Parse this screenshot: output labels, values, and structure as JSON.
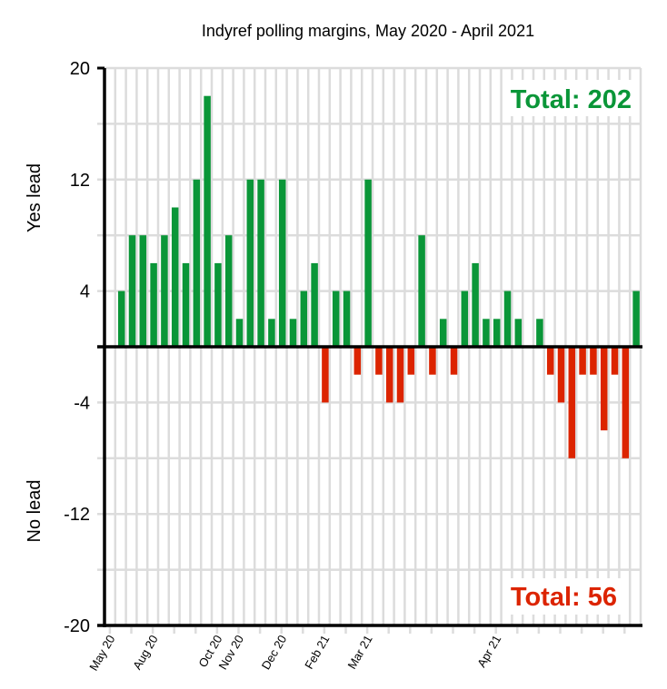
{
  "chart_data": {
    "type": "bar",
    "title": "Indyref polling margins, May 2020 - April 2021",
    "xlabel": "",
    "ylabel_positive": "Yes lead",
    "ylabel_negative": "No lead",
    "ylim": [
      -20,
      20
    ],
    "yticks": [
      20,
      12,
      4,
      -4,
      -12,
      -20
    ],
    "ygrid": [
      20,
      16,
      12,
      8,
      4,
      0,
      -4,
      -8,
      -12,
      -16,
      -20
    ],
    "grid": true,
    "slot_count": 50,
    "values": [
      null,
      4,
      8,
      8,
      6,
      8,
      10,
      6,
      12,
      18,
      6,
      8,
      2,
      12,
      12,
      2,
      12,
      2,
      4,
      6,
      -4,
      4,
      4,
      -2,
      12,
      -2,
      -4,
      -4,
      -2,
      8,
      -2,
      2,
      -2,
      4,
      6,
      2,
      2,
      4,
      2,
      null,
      2,
      -2,
      -4,
      -8,
      -2,
      -2,
      -6,
      -2,
      -8,
      4
    ],
    "xtick_labels": [
      {
        "slot": 0,
        "label": "May 20"
      },
      {
        "slot": 4,
        "label": "Aug 20"
      },
      {
        "slot": 10,
        "label": "Oct 20"
      },
      {
        "slot": 12,
        "label": "Nov 20"
      },
      {
        "slot": 16,
        "label": "Dec 20"
      },
      {
        "slot": 20,
        "label": "Feb 21"
      },
      {
        "slot": 24,
        "label": "Mar 21"
      },
      {
        "slot": 36,
        "label": "Apr 21"
      }
    ],
    "annotations": {
      "yes_total": "Total: 202",
      "no_total": "Total: 56"
    },
    "colors": {
      "yes": "#0a9638",
      "no": "#dc2400",
      "grid": "#dcdcdc",
      "axis": "#000000"
    }
  }
}
